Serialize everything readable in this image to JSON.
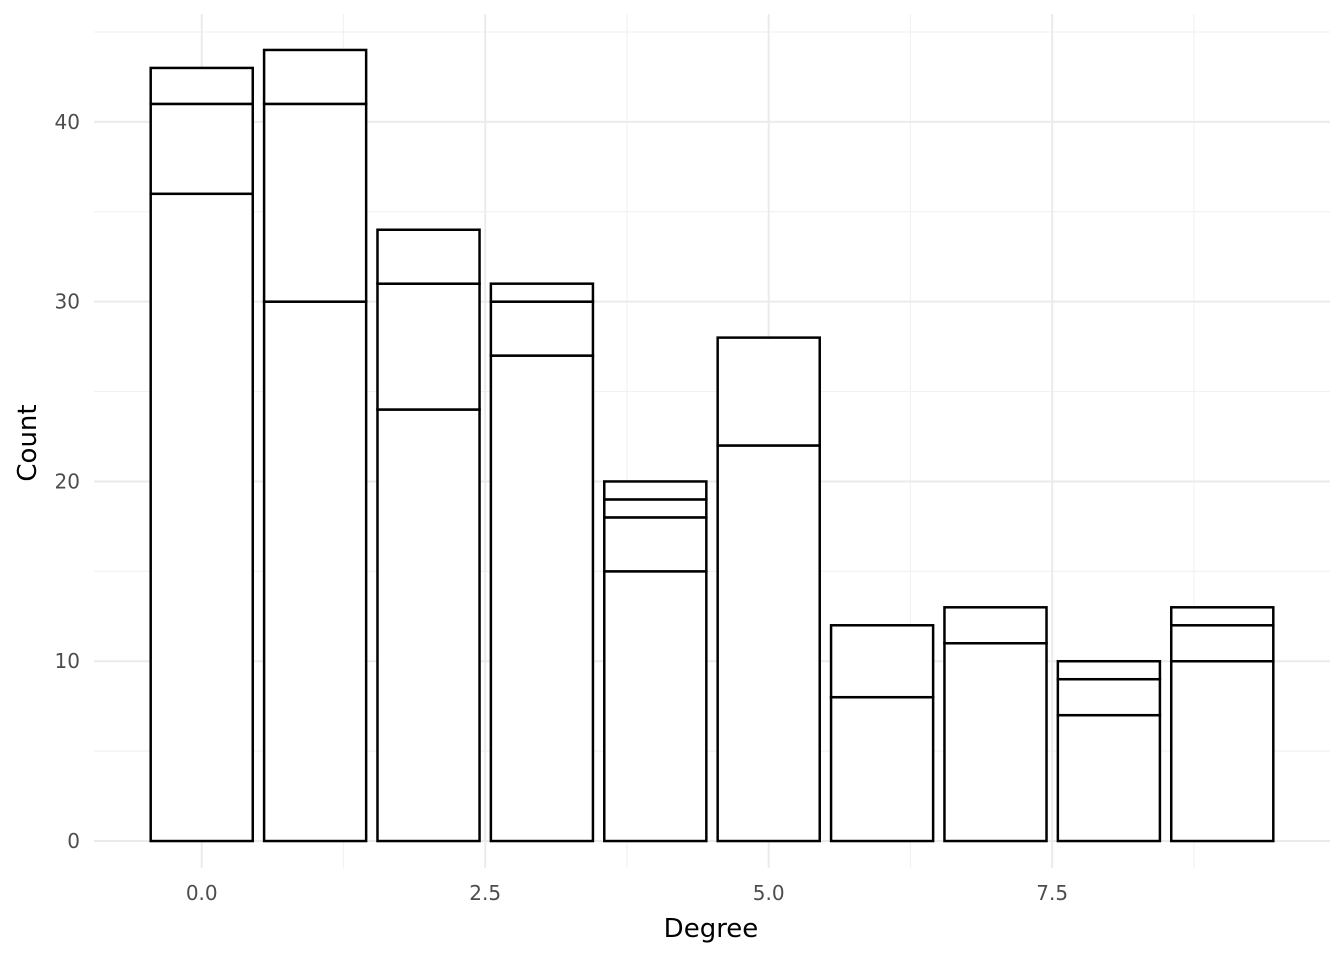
{
  "chart_data": {
    "type": "bar",
    "stacked": true,
    "xlabel": "Degree",
    "ylabel": "Count",
    "categories": [
      0,
      1,
      2,
      3,
      4,
      5,
      6,
      7,
      8,
      9
    ],
    "stack_boundaries": [
      [
        36,
        41,
        43
      ],
      [
        30,
        41,
        44
      ],
      [
        24,
        31,
        34
      ],
      [
        27,
        30,
        31
      ],
      [
        15,
        18,
        19,
        20
      ],
      [
        22,
        28
      ],
      [
        8,
        12
      ],
      [
        11,
        13
      ],
      [
        7,
        9,
        10
      ],
      [
        10,
        12,
        13
      ]
    ],
    "totals": [
      43,
      44,
      34,
      31,
      20,
      28,
      12,
      13,
      10,
      13
    ],
    "xlim": [
      -0.95,
      9.95
    ],
    "ylim": [
      -1.5,
      46
    ],
    "x_ticks": [
      0.0,
      2.5,
      5.0,
      7.5
    ],
    "x_tick_labels": [
      "0.0",
      "2.5",
      "5.0",
      "7.5"
    ],
    "x_minor_ticks": [
      1.25,
      3.75,
      6.25,
      8.75
    ],
    "y_ticks": [
      0,
      10,
      20,
      30,
      40
    ],
    "y_tick_labels": [
      "0",
      "10",
      "20",
      "30",
      "40"
    ],
    "y_minor_ticks": [
      5,
      15,
      25,
      35,
      45
    ],
    "bar_fill": "#ffffff",
    "bar_stroke": "#000000",
    "grid": true,
    "legend": "none"
  }
}
